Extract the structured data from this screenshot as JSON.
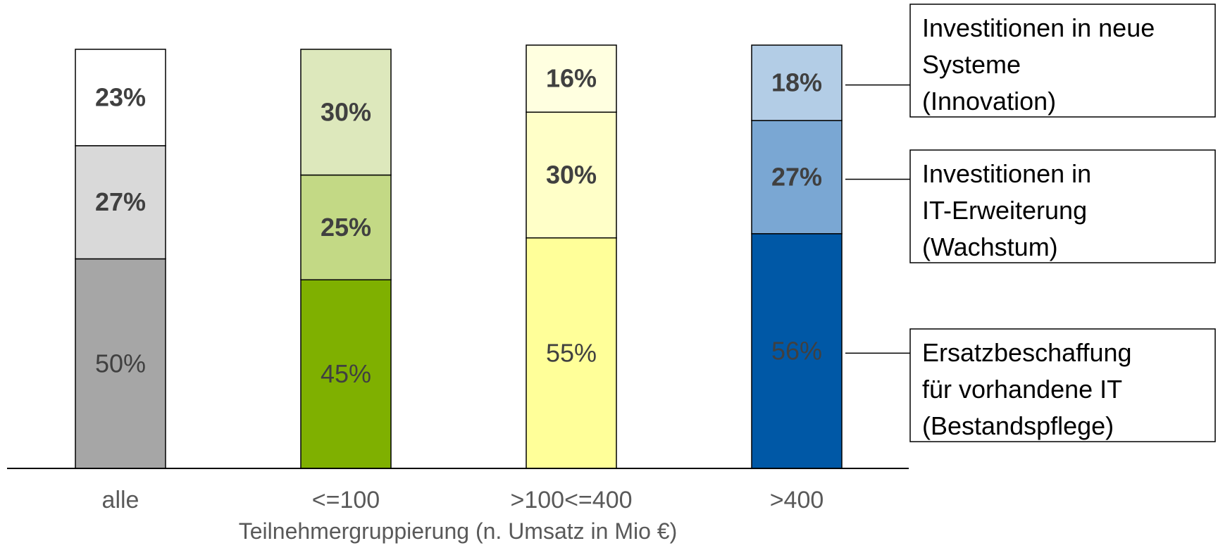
{
  "chart_data": {
    "type": "bar",
    "stacked": true,
    "normalized": true,
    "categories": [
      "alle",
      "<=100",
      ">100<=400",
      ">400"
    ],
    "xlabel": "Teilnehmergruppierung (n. Umsatz in Mio €)",
    "ylabel": "",
    "ylim": [
      0,
      100
    ],
    "series": [
      {
        "legend_lines": [
          "Ersatzbeschaffung",
          "für vorhandene IT",
          "(Bestandspflege)"
        ],
        "values": [
          50,
          45,
          55,
          56
        ],
        "labels": [
          "50%",
          "45%",
          "55%",
          "56%"
        ],
        "bold": false
      },
      {
        "legend_lines": [
          "Investitionen in",
          "IT-Erweiterung",
          "(Wachstum)"
        ],
        "values": [
          27,
          25,
          30,
          27
        ],
        "labels": [
          "27%",
          "25%",
          "30%",
          "27%"
        ],
        "bold": true
      },
      {
        "legend_lines": [
          "Investitionen in neue",
          "Systeme",
          "(Innovation)"
        ],
        "values": [
          23,
          30,
          16,
          18
        ],
        "labels": [
          "23%",
          "30%",
          "16%",
          "18%"
        ],
        "bold": true
      }
    ],
    "colors": [
      [
        "#a6a6a6",
        "#d9d9d9",
        "#ffffff"
      ],
      [
        "#7fb000",
        "#c3d985",
        "#dde8bc"
      ],
      [
        "#ffff99",
        "#ffffc8",
        "#ffffe0"
      ],
      [
        "#0058a6",
        "#7aa7d3",
        "#b3cde6"
      ]
    ],
    "legend_position": "right",
    "grid": false
  }
}
